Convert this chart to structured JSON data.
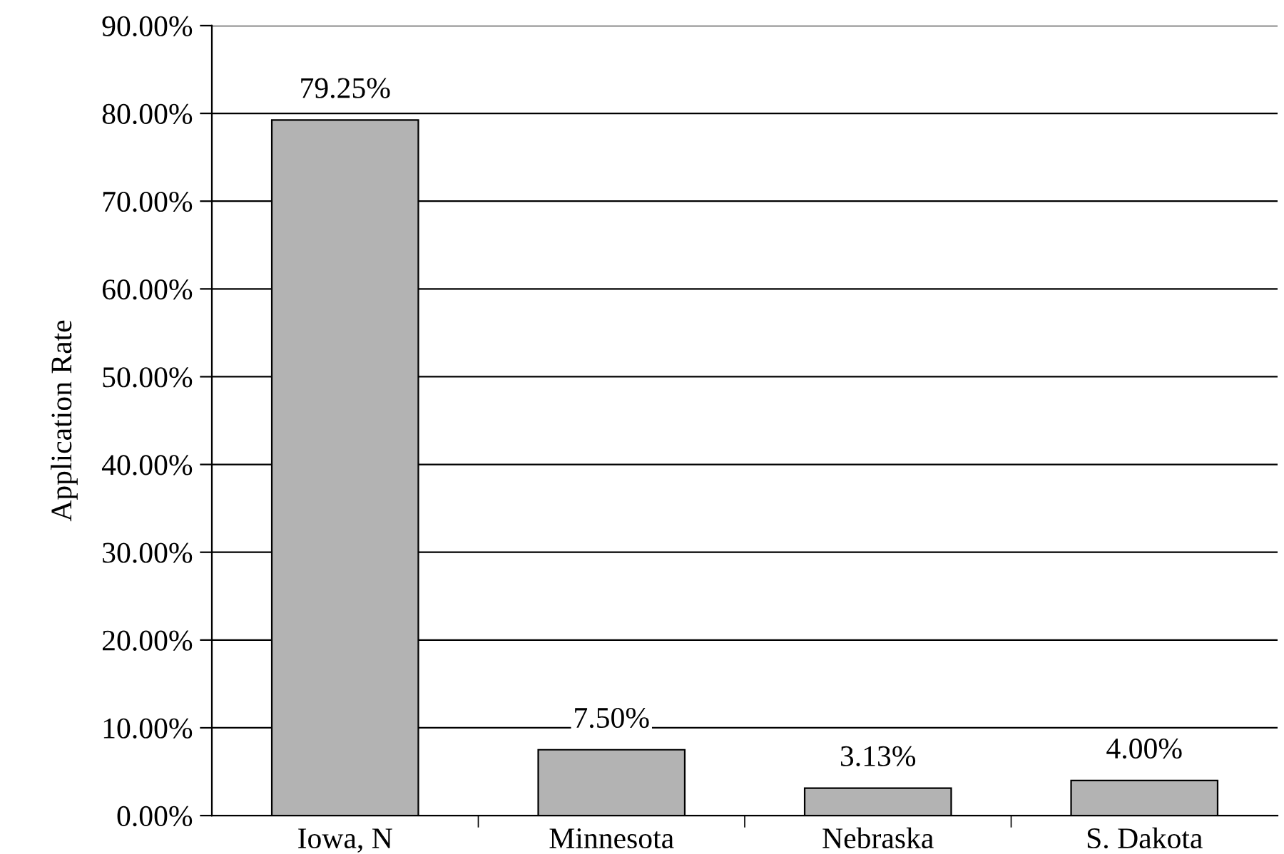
{
  "chart_data": {
    "type": "bar",
    "ylabel": "Application Rate",
    "categories": [
      "Iowa, N",
      "Minnesota",
      "Nebraska",
      "S. Dakota"
    ],
    "values": [
      79.25,
      7.5,
      3.13,
      4.0
    ],
    "value_labels": [
      "79.25%",
      "7.50%",
      "3.13%",
      "4.00%"
    ],
    "color": "#b3b3b3",
    "ylim": [
      0,
      90
    ],
    "yticks": [
      {
        "value": 0,
        "label": "0.00%"
      },
      {
        "value": 10,
        "label": "10.00%"
      },
      {
        "value": 20,
        "label": "20.00%"
      },
      {
        "value": 30,
        "label": "30.00%"
      },
      {
        "value": 40,
        "label": "40.00%"
      },
      {
        "value": 50,
        "label": "50.00%"
      },
      {
        "value": 60,
        "label": "60.00%"
      },
      {
        "value": 70,
        "label": "70.00%"
      },
      {
        "value": 80,
        "label": "80.00%"
      },
      {
        "value": 90,
        "label": "90.00%"
      }
    ],
    "grid": "y"
  }
}
